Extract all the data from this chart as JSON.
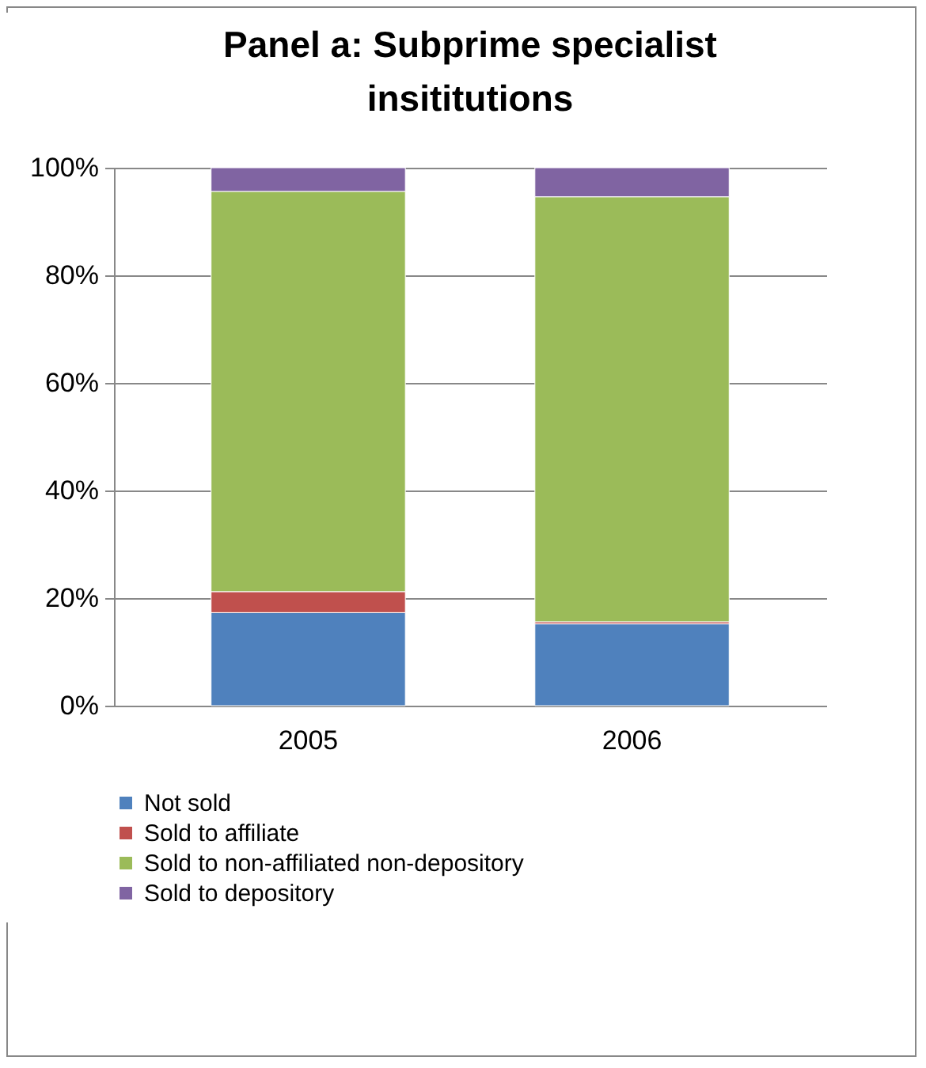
{
  "chart_data": {
    "type": "bar",
    "title": "Panel a: Subprime specialist insititutions",
    "stacked": true,
    "categories": [
      "2005",
      "2006"
    ],
    "series": [
      {
        "name": "Not sold",
        "color": "#4f81bd",
        "values": [
          17.3,
          15.2
        ]
      },
      {
        "name": "Sold to affiliate",
        "color": "#c0504d",
        "values": [
          3.9,
          0.4
        ]
      },
      {
        "name": "Sold to non-affiliated non-depository",
        "color": "#9bbb59",
        "values": [
          74.4,
          79.0
        ]
      },
      {
        "name": "Sold to depository",
        "color": "#8064a2",
        "values": [
          4.4,
          5.4
        ]
      }
    ],
    "ylim": [
      0,
      100
    ],
    "yticks": [
      {
        "value": 0,
        "label": "0%"
      },
      {
        "value": 20,
        "label": "20%"
      },
      {
        "value": 40,
        "label": "40%"
      },
      {
        "value": 60,
        "label": "60%"
      },
      {
        "value": 80,
        "label": "80%"
      },
      {
        "value": 100,
        "label": "100%"
      }
    ],
    "grid": "y",
    "legend": "bottom"
  }
}
